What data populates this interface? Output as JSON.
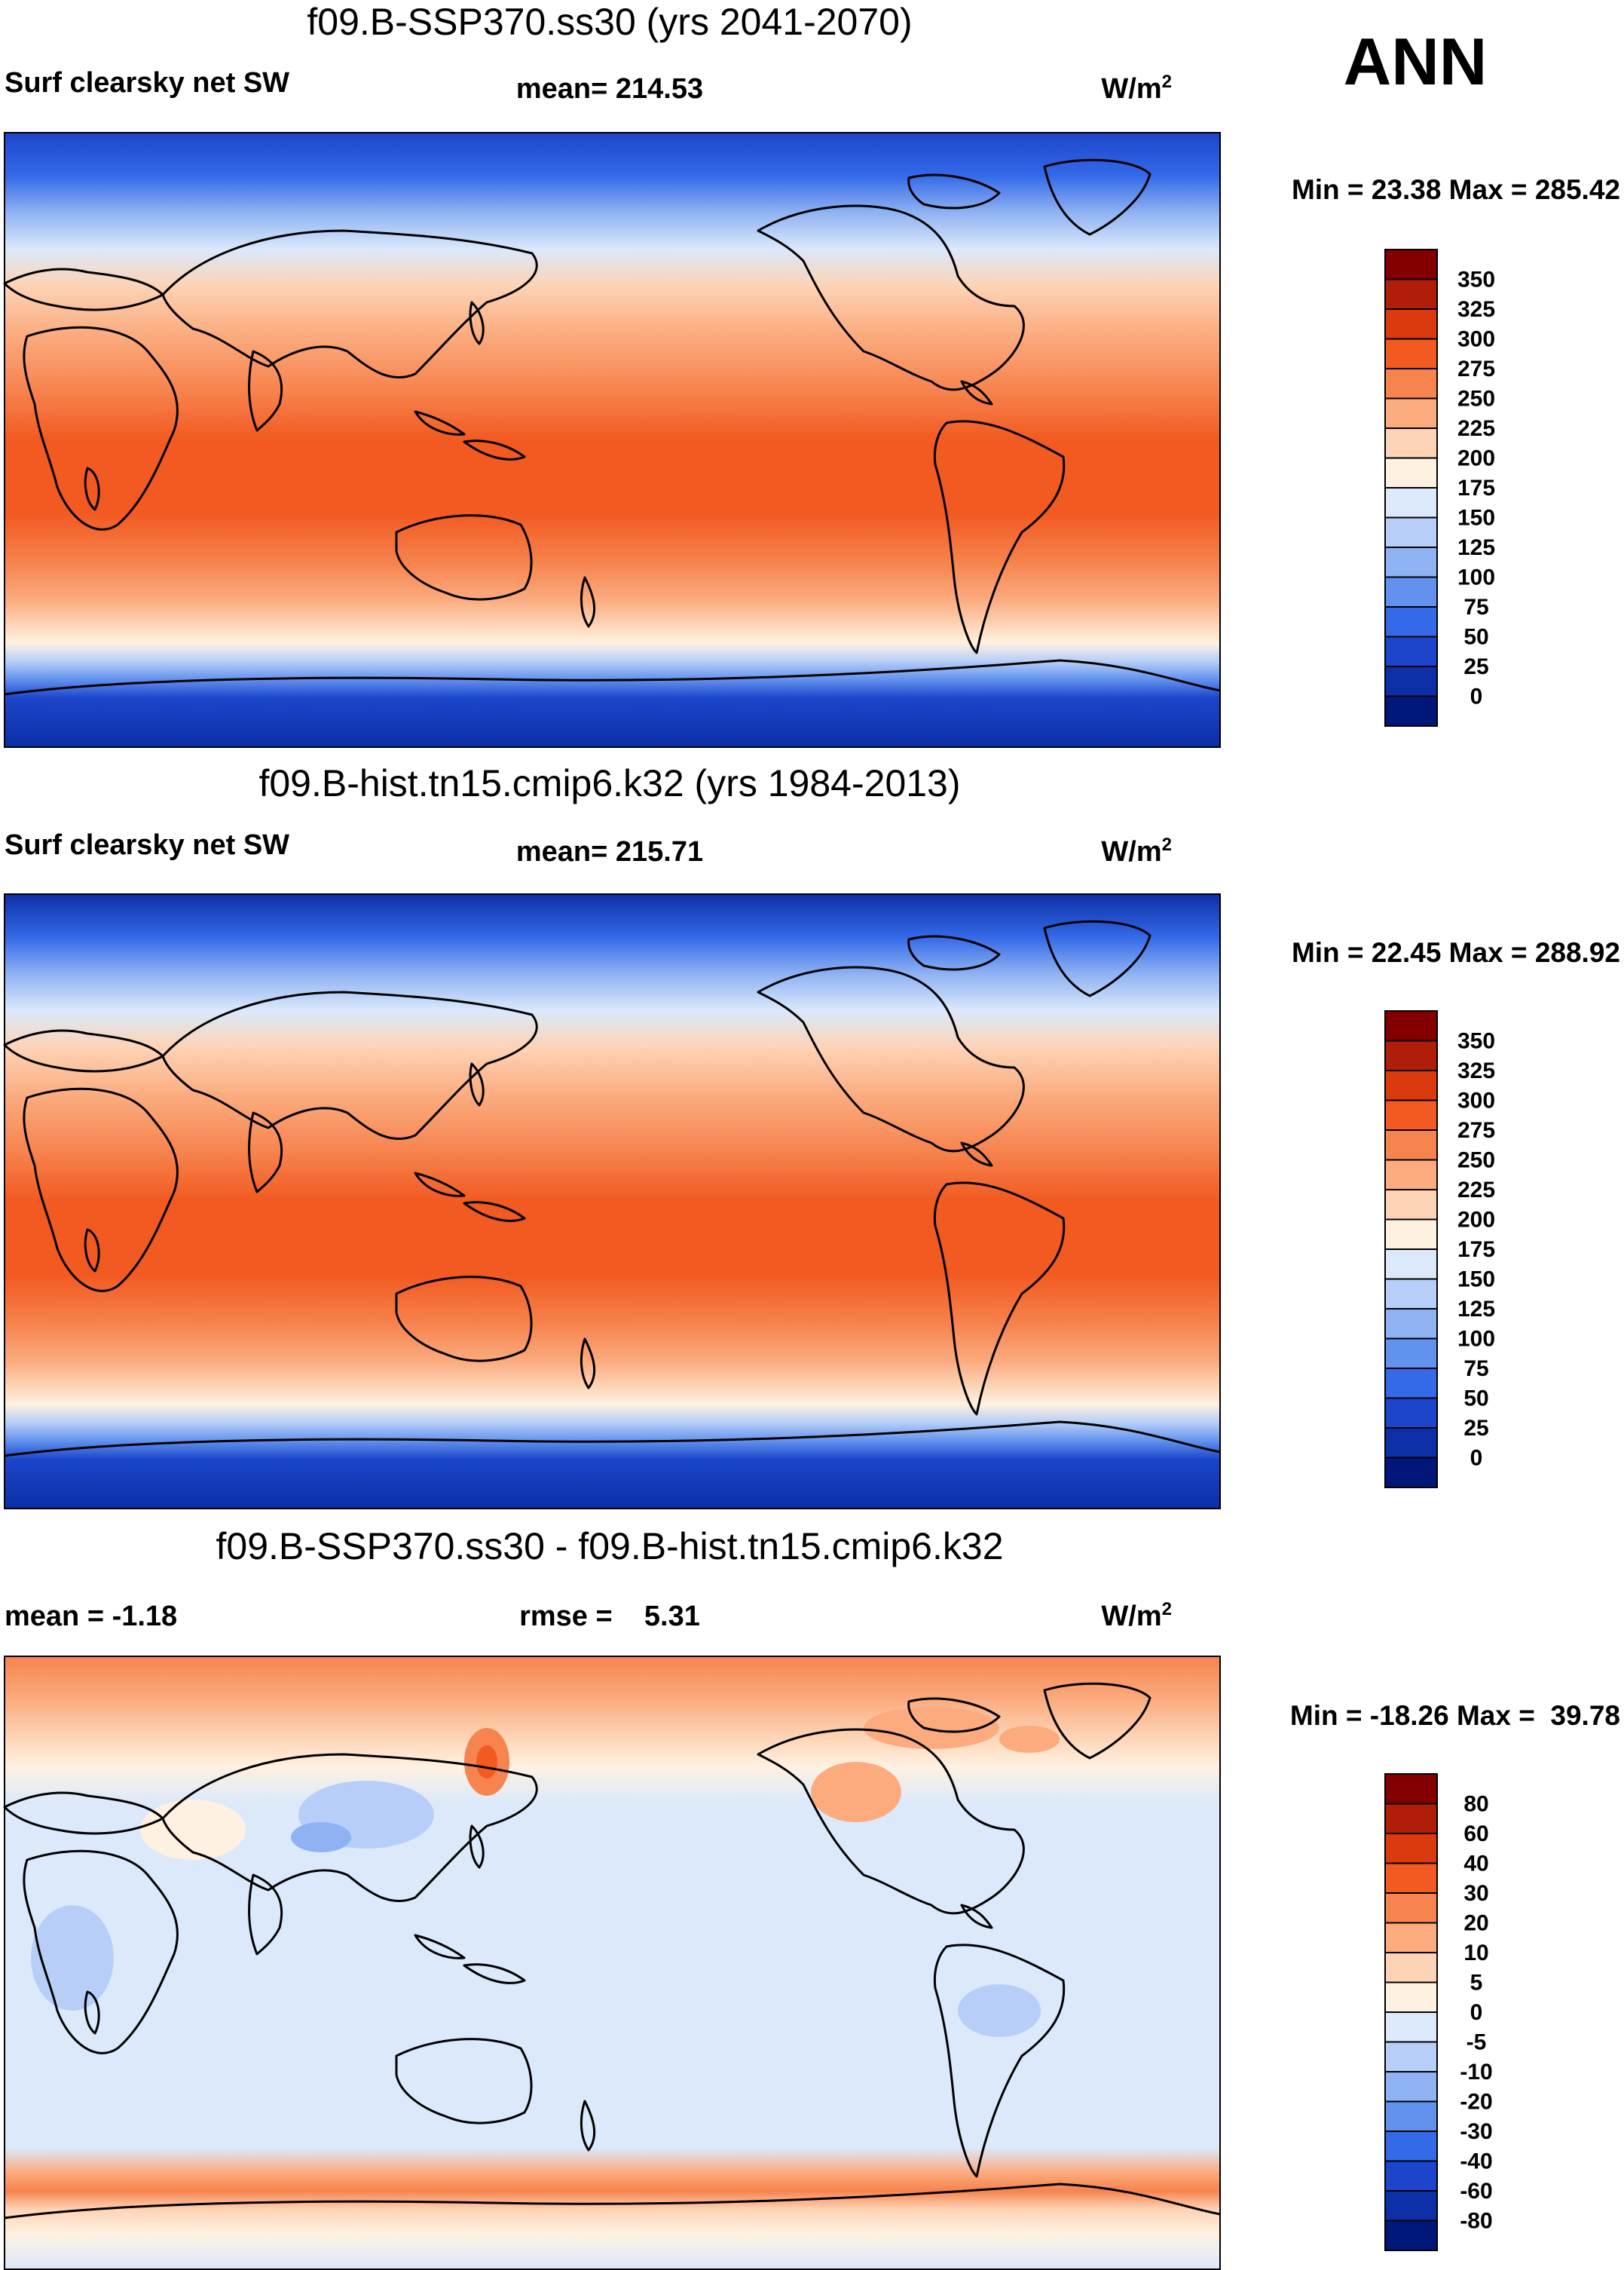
{
  "season": "ANN",
  "panels": [
    {
      "title": "f09.B-SSP370.ss30 (yrs 2041-2070)",
      "left_label": "Surf clearsky net SW",
      "center_label": "mean= 214.53",
      "units": "W/m",
      "units_sup": "2",
      "minmax": "Min =  23.38 Max = 285.42",
      "map_type": "absolute"
    },
    {
      "title": "f09.B-hist.tn15.cmip6.k32 (yrs 1984-2013)",
      "left_label": "Surf clearsky net SW",
      "center_label": "mean= 215.71",
      "units": "W/m",
      "units_sup": "2",
      "minmax": "Min =  22.45 Max = 288.92",
      "map_type": "absolute"
    },
    {
      "title": "f09.B-SSP370.ss30 - f09.B-hist.tn15.cmip6.k32",
      "left_label": "mean =  -1.18",
      "center_label": "rmse =    5.31",
      "units": "W/m",
      "units_sup": "2",
      "minmax": "Min = -18.26 Max =  39.78",
      "map_type": "difference"
    }
  ],
  "chart_data": [
    {
      "type": "heatmap",
      "title": "f09.B-SSP370.ss30 (yrs 2041-2070)",
      "variable": "Surf clearsky net SW",
      "units": "W/m2",
      "mean": 214.53,
      "min": 23.38,
      "max": 285.42,
      "colorbar_levels": [
        "350",
        "325",
        "300",
        "275",
        "250",
        "225",
        "200",
        "175",
        "150",
        "125",
        "100",
        "75",
        "50",
        "25",
        "0"
      ],
      "colorbar_colors": [
        "#840000",
        "#b01e0a",
        "#da3a0e",
        "#f25a21",
        "#f7834e",
        "#fbab7e",
        "#fdd3b5",
        "#fff1e1",
        "#dbe9fb",
        "#b7cff8",
        "#8fb2f3",
        "#6292ee",
        "#3469e8",
        "#1c45cb",
        "#0c2fa8",
        "#00177a"
      ],
      "zonal_profile": [
        {
          "lat": 90,
          "value": 40
        },
        {
          "lat": 75,
          "value": 90
        },
        {
          "lat": 60,
          "value": 135
        },
        {
          "lat": 45,
          "value": 190
        },
        {
          "lat": 30,
          "value": 240
        },
        {
          "lat": 15,
          "value": 275
        },
        {
          "lat": 0,
          "value": 290
        },
        {
          "lat": -15,
          "value": 285
        },
        {
          "lat": -30,
          "value": 255
        },
        {
          "lat": -45,
          "value": 200
        },
        {
          "lat": -60,
          "value": 130
        },
        {
          "lat": -75,
          "value": 55
        },
        {
          "lat": -90,
          "value": 30
        }
      ]
    },
    {
      "type": "heatmap",
      "title": "f09.B-hist.tn15.cmip6.k32 (yrs 1984-2013)",
      "variable": "Surf clearsky net SW",
      "units": "W/m2",
      "mean": 215.71,
      "min": 22.45,
      "max": 288.92,
      "colorbar_levels": [
        "350",
        "325",
        "300",
        "275",
        "250",
        "225",
        "200",
        "175",
        "150",
        "125",
        "100",
        "75",
        "50",
        "25",
        "0"
      ],
      "colorbar_colors": [
        "#840000",
        "#b01e0a",
        "#da3a0e",
        "#f25a21",
        "#f7834e",
        "#fbab7e",
        "#fdd3b5",
        "#fff1e1",
        "#dbe9fb",
        "#b7cff8",
        "#8fb2f3",
        "#6292ee",
        "#3469e8",
        "#1c45cb",
        "#0c2fa8",
        "#00177a"
      ],
      "zonal_profile": [
        {
          "lat": 90,
          "value": 35
        },
        {
          "lat": 75,
          "value": 85
        },
        {
          "lat": 60,
          "value": 130
        },
        {
          "lat": 45,
          "value": 190
        },
        {
          "lat": 30,
          "value": 240
        },
        {
          "lat": 15,
          "value": 275
        },
        {
          "lat": 0,
          "value": 290
        },
        {
          "lat": -15,
          "value": 285
        },
        {
          "lat": -30,
          "value": 255
        },
        {
          "lat": -45,
          "value": 195
        },
        {
          "lat": -60,
          "value": 125
        },
        {
          "lat": -75,
          "value": 50
        },
        {
          "lat": -90,
          "value": 25
        }
      ]
    },
    {
      "type": "heatmap",
      "title": "f09.B-SSP370.ss30 - f09.B-hist.tn15.cmip6.k32",
      "variable": "Surf clearsky net SW",
      "units": "W/m2",
      "mean": -1.18,
      "rmse": 5.31,
      "min": -18.26,
      "max": 39.78,
      "colorbar_levels": [
        "80",
        "60",
        "40",
        "30",
        "20",
        "10",
        "5",
        "0",
        "-5",
        "-10",
        "-20",
        "-30",
        "-40",
        "-60",
        "-80"
      ],
      "colorbar_colors": [
        "#840000",
        "#b01e0a",
        "#da3a0e",
        "#f25a21",
        "#f7834e",
        "#fbab7e",
        "#fdd3b5",
        "#fff1e1",
        "#dbe9fb",
        "#b7cff8",
        "#8fb2f3",
        "#6292ee",
        "#3469e8",
        "#1c45cb",
        "#0c2fa8",
        "#00177a"
      ],
      "zonal_profile": [
        {
          "lat": 90,
          "value": 20
        },
        {
          "lat": 75,
          "value": 12
        },
        {
          "lat": 60,
          "value": 4
        },
        {
          "lat": 45,
          "value": 0
        },
        {
          "lat": 0,
          "value": -2
        },
        {
          "lat": -45,
          "value": 0
        },
        {
          "lat": -60,
          "value": 25
        },
        {
          "lat": -75,
          "value": 6
        },
        {
          "lat": -90,
          "value": 0
        }
      ]
    }
  ]
}
